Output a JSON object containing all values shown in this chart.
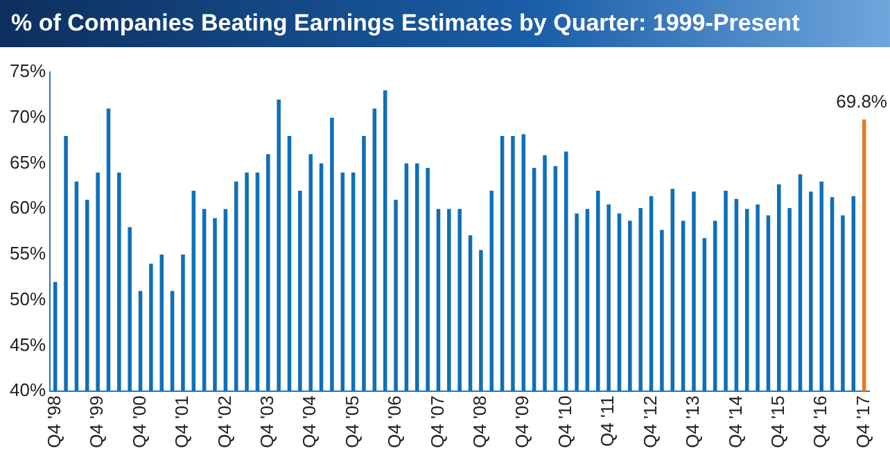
{
  "chart_data": {
    "type": "bar",
    "title": "% of Companies Beating Earnings Estimates by Quarter: 1999-Present",
    "categories": [
      "Q4 '98",
      null,
      null,
      null,
      "Q4 '99",
      null,
      null,
      null,
      "Q4 '00",
      null,
      null,
      null,
      "Q4 '01",
      null,
      null,
      null,
      "Q4 '02",
      null,
      null,
      null,
      "Q4 '03",
      null,
      null,
      null,
      "Q4 '04",
      null,
      null,
      null,
      "Q4 '05",
      null,
      null,
      null,
      "Q4 '06",
      null,
      null,
      null,
      "Q4 '07",
      null,
      null,
      null,
      "Q4 '08",
      null,
      null,
      null,
      "Q4 '09",
      null,
      null,
      null,
      "Q4 '10",
      null,
      null,
      null,
      "Q4 '11",
      null,
      null,
      null,
      "Q4 '12",
      null,
      null,
      null,
      "Q4 '13",
      null,
      null,
      null,
      "Q4 '14",
      null,
      null,
      null,
      "Q4 '15",
      null,
      null,
      null,
      "Q4 '16",
      null,
      null,
      null,
      "Q4 '17"
    ],
    "values": [
      52,
      68,
      63,
      61,
      64,
      71,
      64,
      58,
      51,
      54,
      55,
      51,
      55,
      62,
      60,
      59,
      60,
      63,
      64,
      64,
      66,
      72,
      68,
      62,
      66,
      65,
      70,
      64,
      64,
      68,
      71,
      73,
      61,
      65,
      65,
      64.5,
      60,
      60,
      60,
      57.1,
      55.5,
      62,
      68,
      68,
      68.2,
      64.5,
      65.9,
      64.7,
      66.3,
      59.5,
      60,
      62,
      60.5,
      59.5,
      58.7,
      60.1,
      61.4,
      57.7,
      62.2,
      58.7,
      61.9,
      56.8,
      58.7,
      62,
      61.1,
      60,
      60.5,
      59.3,
      62.7,
      60.1,
      63.8,
      61.9,
      63,
      61.3,
      59.3,
      61.4,
      69.8
    ],
    "colors": [
      "#0f6fb8",
      "#0f6fb8",
      "#0f6fb8",
      "#0f6fb8",
      "#0f6fb8",
      "#0f6fb8",
      "#0f6fb8",
      "#0f6fb8",
      "#0f6fb8",
      "#0f6fb8",
      "#0f6fb8",
      "#0f6fb8",
      "#0f6fb8",
      "#0f6fb8",
      "#0f6fb8",
      "#0f6fb8",
      "#0f6fb8",
      "#0f6fb8",
      "#0f6fb8",
      "#0f6fb8",
      "#0f6fb8",
      "#0f6fb8",
      "#0f6fb8",
      "#0f6fb8",
      "#0f6fb8",
      "#0f6fb8",
      "#0f6fb8",
      "#0f6fb8",
      "#0f6fb8",
      "#0f6fb8",
      "#0f6fb8",
      "#0f6fb8",
      "#0f6fb8",
      "#0f6fb8",
      "#0f6fb8",
      "#0f6fb8",
      "#0f6fb8",
      "#0f6fb8",
      "#0f6fb8",
      "#0f6fb8",
      "#0f6fb8",
      "#0f6fb8",
      "#0f6fb8",
      "#0f6fb8",
      "#0f6fb8",
      "#0f6fb8",
      "#0f6fb8",
      "#0f6fb8",
      "#0f6fb8",
      "#0f6fb8",
      "#0f6fb8",
      "#0f6fb8",
      "#0f6fb8",
      "#0f6fb8",
      "#0f6fb8",
      "#0f6fb8",
      "#0f6fb8",
      "#0f6fb8",
      "#0f6fb8",
      "#0f6fb8",
      "#0f6fb8",
      "#0f6fb8",
      "#0f6fb8",
      "#0f6fb8",
      "#0f6fb8",
      "#0f6fb8",
      "#0f6fb8",
      "#0f6fb8",
      "#0f6fb8",
      "#0f6fb8",
      "#0f6fb8",
      "#0f6fb8",
      "#0f6fb8",
      "#0f6fb8",
      "#0f6fb8",
      "#0f6fb8",
      "#e87722"
    ],
    "value_labels": [
      null,
      null,
      null,
      null,
      null,
      null,
      null,
      null,
      null,
      null,
      null,
      null,
      null,
      null,
      null,
      null,
      null,
      null,
      null,
      null,
      null,
      null,
      null,
      null,
      null,
      null,
      null,
      null,
      null,
      null,
      null,
      null,
      null,
      null,
      null,
      null,
      null,
      null,
      null,
      null,
      null,
      null,
      null,
      null,
      null,
      null,
      null,
      null,
      null,
      null,
      null,
      null,
      null,
      null,
      null,
      null,
      null,
      null,
      null,
      null,
      null,
      null,
      null,
      null,
      null,
      null,
      null,
      null,
      null,
      null,
      null,
      null,
      null,
      null,
      null,
      null,
      "69.8%"
    ],
    "ylim": [
      40,
      75
    ],
    "yticks": [
      {
        "value": 40,
        "label": "40%"
      },
      {
        "value": 45,
        "label": "45%"
      },
      {
        "value": 50,
        "label": "50%"
      },
      {
        "value": 55,
        "label": "55%"
      },
      {
        "value": 60,
        "label": "60%"
      },
      {
        "value": 65,
        "label": "65%"
      },
      {
        "value": 70,
        "label": "70%"
      },
      {
        "value": 75,
        "label": "75%"
      }
    ],
    "grid": false,
    "legend": false
  }
}
